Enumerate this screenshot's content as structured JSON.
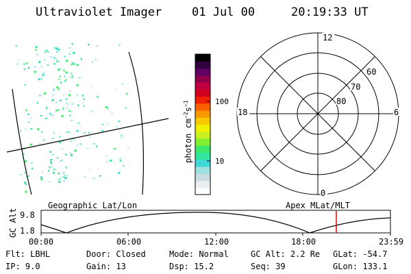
{
  "header": {
    "instrument": "Ultraviolet Imager",
    "date": "01 Jul 00",
    "time": "20:19:33 UT"
  },
  "colorbar": {
    "unit_label": "photon cm",
    "unit_sup1": "−2",
    "unit_mid": "s",
    "unit_sup2": "−1",
    "ticks": [
      "100",
      "10"
    ],
    "colors": [
      "#ffffff",
      "#e8eef0",
      "#c8dde0",
      "#a0dfe0",
      "#3fd8d8",
      "#30e6a0",
      "#3ee86a",
      "#80f030",
      "#c8f020",
      "#f0f000",
      "#f8c800",
      "#f89800",
      "#f86000",
      "#f02000",
      "#d00020",
      "#c00040",
      "#90004a",
      "#600060",
      "#300040",
      "#000000"
    ]
  },
  "polar_plot": {
    "mlt_labels": {
      "top": "12",
      "right": "6",
      "bottom": "0",
      "left": "18"
    },
    "lat_labels": [
      "60",
      "70",
      "80"
    ],
    "title": "Apex MLat/MLT"
  },
  "image_panel": {
    "title": "Geographic Lat/Lon"
  },
  "altitude_strip": {
    "ylabel": "GC Alt",
    "y_top": "9.8",
    "y_bottom": "1.8",
    "x_ticks": [
      "00:00",
      "06:00",
      "12:00",
      "18:00",
      "23:59"
    ],
    "marker_color": "#e00000"
  },
  "info": {
    "row1": [
      {
        "key": "Flt:",
        "value": "LBHL"
      },
      {
        "key": "Door:",
        "value": "Closed"
      },
      {
        "key": "Mode:",
        "value": "Normal"
      },
      {
        "key": "GC Alt:",
        "value": "2.2 Re"
      },
      {
        "key": "GLat:",
        "value": "-54.7"
      }
    ],
    "row2": [
      {
        "key": "IP:",
        "value": "9.0"
      },
      {
        "key": "Gain:",
        "value": "13"
      },
      {
        "key": "Dsp:",
        "value": "15.2"
      },
      {
        "key": "Seq:",
        "value": "39"
      },
      {
        "key": "GLon:",
        "value": "133.1"
      }
    ]
  }
}
